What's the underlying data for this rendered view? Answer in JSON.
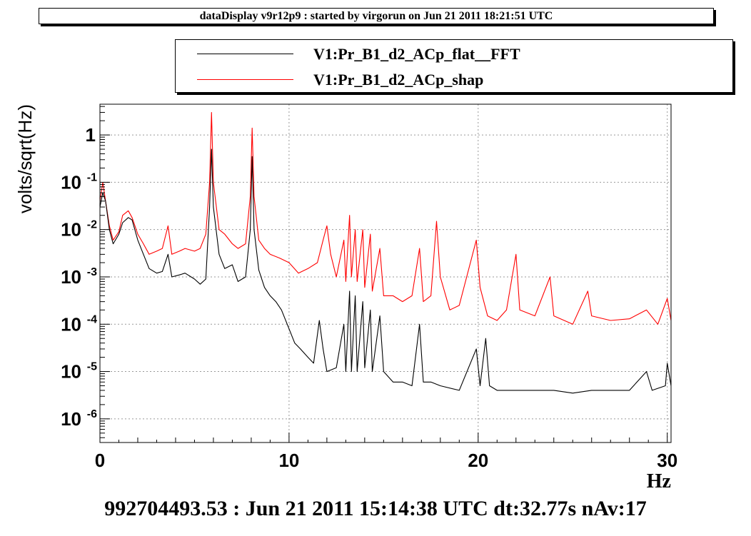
{
  "header": {
    "title": "dataDisplay v9r12p9 : started by virgorun on Jun 21 2011 18:21:51 UTC"
  },
  "footer": {
    "text": "992704493.53 : Jun 21 2011 15:14:38 UTC dt:32.77s nAv:17"
  },
  "chart_data": {
    "type": "line",
    "title": "",
    "xlabel": "Hz",
    "ylabel": "volts/sqrt(Hz)",
    "xlim": [
      0,
      30.2
    ],
    "ylim_log10": [
      -6.5,
      0.65
    ],
    "yscale": "log",
    "grid": true,
    "legend_position": "top",
    "x_ticks": [
      "0",
      "10",
      "20",
      "30"
    ],
    "y_ticks": [
      {
        "base": "10",
        "exp": "-6",
        "value": 1e-06
      },
      {
        "base": "10",
        "exp": "-5",
        "value": 1e-05
      },
      {
        "base": "10",
        "exp": "-4",
        "value": 0.0001
      },
      {
        "base": "10",
        "exp": "-3",
        "value": 0.001
      },
      {
        "base": "10",
        "exp": "-2",
        "value": 0.01
      },
      {
        "base": "10",
        "exp": "-1",
        "value": 0.1
      },
      {
        "base": "1",
        "exp": "",
        "value": 1
      }
    ],
    "series": [
      {
        "name": "V1:Pr_B1_d2_ACp_flat__FFT",
        "color": "#000000",
        "points": [
          [
            0,
            0.03
          ],
          [
            0.15,
            0.06
          ],
          [
            0.3,
            0.04
          ],
          [
            0.5,
            0.01
          ],
          [
            0.7,
            0.005
          ],
          [
            1.0,
            0.008
          ],
          [
            1.2,
            0.014
          ],
          [
            1.5,
            0.018
          ],
          [
            1.7,
            0.016
          ],
          [
            2.0,
            0.006
          ],
          [
            2.3,
            0.003
          ],
          [
            2.6,
            0.0015
          ],
          [
            3.0,
            0.0012
          ],
          [
            3.3,
            0.0013
          ],
          [
            3.6,
            0.003
          ],
          [
            3.8,
            0.001
          ],
          [
            4.2,
            0.0011
          ],
          [
            4.5,
            0.0012
          ],
          [
            5.0,
            0.0009
          ],
          [
            5.3,
            0.0007
          ],
          [
            5.6,
            0.0009
          ],
          [
            5.8,
            0.03
          ],
          [
            5.9,
            0.5
          ],
          [
            6.0,
            0.03
          ],
          [
            6.3,
            0.003
          ],
          [
            6.6,
            0.0015
          ],
          [
            7.0,
            0.0018
          ],
          [
            7.3,
            0.0008
          ],
          [
            7.7,
            0.001
          ],
          [
            7.95,
            0.01
          ],
          [
            8.05,
            0.35
          ],
          [
            8.15,
            0.01
          ],
          [
            8.4,
            0.0014
          ],
          [
            8.7,
            0.0006
          ],
          [
            9.0,
            0.0004
          ],
          [
            9.3,
            0.0003
          ],
          [
            9.6,
            0.0002
          ],
          [
            10.0,
            8e-05
          ],
          [
            10.3,
            4e-05
          ],
          [
            10.6,
            3e-05
          ],
          [
            11.0,
            2e-05
          ],
          [
            11.3,
            1.5e-05
          ],
          [
            11.6,
            0.00012
          ],
          [
            11.8,
            3e-05
          ],
          [
            12.0,
            1e-05
          ],
          [
            12.5,
            1.2e-05
          ],
          [
            12.9,
            0.0001
          ],
          [
            13.0,
            1e-05
          ],
          [
            13.2,
            0.0005
          ],
          [
            13.3,
            1e-05
          ],
          [
            13.5,
            0.0004
          ],
          [
            13.6,
            1e-05
          ],
          [
            13.9,
            0.0003
          ],
          [
            14.0,
            1.2e-05
          ],
          [
            14.3,
            0.0002
          ],
          [
            14.4,
            1e-05
          ],
          [
            14.8,
            0.00015
          ],
          [
            15.0,
            1e-05
          ],
          [
            15.5,
            6e-06
          ],
          [
            16.0,
            6e-06
          ],
          [
            16.5,
            5e-06
          ],
          [
            16.9,
            0.0001
          ],
          [
            17.1,
            6e-06
          ],
          [
            17.5,
            6e-06
          ],
          [
            18.0,
            5e-06
          ],
          [
            19.0,
            4e-06
          ],
          [
            19.9,
            3e-05
          ],
          [
            20.1,
            5e-06
          ],
          [
            20.4,
            5e-05
          ],
          [
            20.6,
            5e-06
          ],
          [
            21.0,
            4e-06
          ],
          [
            22.0,
            4e-06
          ],
          [
            23.0,
            4e-06
          ],
          [
            24.0,
            4e-06
          ],
          [
            25.0,
            3.5e-06
          ],
          [
            26.0,
            4e-06
          ],
          [
            27.0,
            4e-06
          ],
          [
            28.0,
            4e-06
          ],
          [
            28.9,
            1e-05
          ],
          [
            29.2,
            4e-06
          ],
          [
            29.9,
            5e-06
          ],
          [
            30.0,
            1.5e-05
          ],
          [
            30.2,
            5e-06
          ]
        ]
      },
      {
        "name": "V1:Pr_B1_d2_ACp_shap",
        "color": "#ff0000",
        "points": [
          [
            0,
            0.04
          ],
          [
            0.15,
            0.1
          ],
          [
            0.3,
            0.04
          ],
          [
            0.5,
            0.012
          ],
          [
            0.7,
            0.006
          ],
          [
            1.0,
            0.009
          ],
          [
            1.2,
            0.02
          ],
          [
            1.5,
            0.025
          ],
          [
            1.7,
            0.018
          ],
          [
            2.0,
            0.008
          ],
          [
            2.3,
            0.005
          ],
          [
            2.6,
            0.003
          ],
          [
            3.0,
            0.0035
          ],
          [
            3.3,
            0.004
          ],
          [
            3.6,
            0.012
          ],
          [
            3.8,
            0.003
          ],
          [
            4.2,
            0.0035
          ],
          [
            4.5,
            0.004
          ],
          [
            5.0,
            0.0035
          ],
          [
            5.3,
            0.004
          ],
          [
            5.6,
            0.008
          ],
          [
            5.8,
            0.1
          ],
          [
            5.9,
            3.0
          ],
          [
            6.0,
            0.1
          ],
          [
            6.3,
            0.01
          ],
          [
            6.6,
            0.008
          ],
          [
            7.0,
            0.005
          ],
          [
            7.3,
            0.004
          ],
          [
            7.7,
            0.005
          ],
          [
            7.95,
            0.05
          ],
          [
            8.05,
            1.4
          ],
          [
            8.15,
            0.05
          ],
          [
            8.4,
            0.006
          ],
          [
            8.7,
            0.004
          ],
          [
            9.0,
            0.003
          ],
          [
            9.5,
            0.0025
          ],
          [
            10.0,
            0.002
          ],
          [
            10.5,
            0.0012
          ],
          [
            11.0,
            0.0015
          ],
          [
            11.5,
            0.002
          ],
          [
            11.8,
            0.006
          ],
          [
            12.0,
            0.012
          ],
          [
            12.2,
            0.003
          ],
          [
            12.5,
            0.001
          ],
          [
            12.9,
            0.006
          ],
          [
            13.0,
            0.0008
          ],
          [
            13.2,
            0.02
          ],
          [
            13.3,
            0.001
          ],
          [
            13.5,
            0.01
          ],
          [
            13.6,
            0.0008
          ],
          [
            13.9,
            0.01
          ],
          [
            14.0,
            0.0006
          ],
          [
            14.3,
            0.008
          ],
          [
            14.4,
            0.0005
          ],
          [
            14.8,
            0.004
          ],
          [
            15.0,
            0.0004
          ],
          [
            15.5,
            0.0004
          ],
          [
            16.0,
            0.0003
          ],
          [
            16.5,
            0.0004
          ],
          [
            16.9,
            0.004
          ],
          [
            17.1,
            0.0003
          ],
          [
            17.5,
            0.0004
          ],
          [
            17.8,
            0.015
          ],
          [
            18.0,
            0.001
          ],
          [
            18.5,
            0.0002
          ],
          [
            19.0,
            0.00025
          ],
          [
            19.9,
            0.006
          ],
          [
            20.1,
            0.0006
          ],
          [
            20.5,
            0.00015
          ],
          [
            21.0,
            0.00012
          ],
          [
            21.5,
            0.0002
          ],
          [
            22.0,
            0.003
          ],
          [
            22.2,
            0.0002
          ],
          [
            23.0,
            0.00015
          ],
          [
            23.8,
            0.001
          ],
          [
            24.0,
            0.00015
          ],
          [
            25.0,
            0.0001
          ],
          [
            25.8,
            0.0005
          ],
          [
            26.0,
            0.00015
          ],
          [
            27.0,
            0.00012
          ],
          [
            28.0,
            0.00013
          ],
          [
            28.9,
            0.0002
          ],
          [
            29.5,
            0.0001
          ],
          [
            30.0,
            0.00035
          ],
          [
            30.2,
            0.00012
          ]
        ]
      }
    ]
  }
}
